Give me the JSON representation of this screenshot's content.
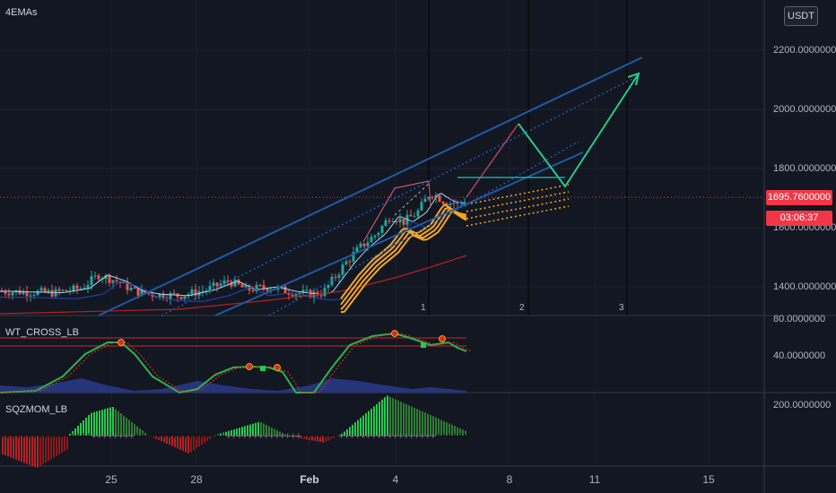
{
  "colors": {
    "background": "#131722",
    "bull": "#26a69a",
    "bear": "#ef5350",
    "price_tag": "#f23645",
    "channel": "#1f5aa8",
    "ema_orange": "#f5a623",
    "wt_green": "#2db34a",
    "wt_red": "#d12a2a",
    "mom_green": "#26c94a",
    "mom_red": "#b22222"
  },
  "main_pane": {
    "indicator_label": "4EMAs",
    "currency_button": "USDT",
    "price_levels": [
      "2200.0000000",
      "2000.0000000",
      "1800.0000000",
      "1600.0000000",
      "1400.0000000"
    ],
    "current_price": "1695.7600000",
    "countdown": "03:06:37",
    "vertical_line_labels": [
      "1",
      "2",
      "3"
    ]
  },
  "wt_pane": {
    "label": "WT_CROSS_LB",
    "levels": [
      "80.0000000",
      "40.0000000"
    ]
  },
  "mom_pane": {
    "label": "SQZMOM_LB",
    "levels": [
      "200.0000000"
    ]
  },
  "time_axis": {
    "dates": [
      "25",
      "28",
      "Feb",
      "4",
      "8",
      "11",
      "15"
    ]
  }
}
